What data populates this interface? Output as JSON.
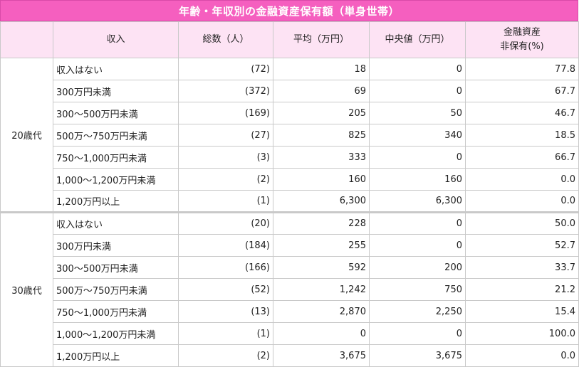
{
  "title": "年齢・年収別の金融資産保有額（単身世帯）",
  "headers": {
    "income": "収入",
    "count": "総数（人）",
    "mean": "平均（万円）",
    "median": "中央値（万円）",
    "nohold_line1": "金融資産",
    "nohold_line2": "非保有(%)"
  },
  "groups": [
    {
      "age": "20歳代",
      "rows": [
        {
          "income": "収入はない",
          "count": "(72)",
          "mean": "18",
          "median": "0",
          "nohold": "77.8"
        },
        {
          "income": "300万円未満",
          "count": "(372)",
          "mean": "69",
          "median": "0",
          "nohold": "67.7"
        },
        {
          "income": "300～500万円未満",
          "count": "(169)",
          "mean": "205",
          "median": "50",
          "nohold": "46.7"
        },
        {
          "income": "500万～750万円未満",
          "count": "(27)",
          "mean": "825",
          "median": "340",
          "nohold": "18.5"
        },
        {
          "income": "750～1,000万円未満",
          "count": "(3)",
          "mean": "333",
          "median": "0",
          "nohold": "66.7"
        },
        {
          "income": "1,000～1,200万円未満",
          "count": "(2)",
          "mean": "160",
          "median": "160",
          "nohold": "0.0"
        },
        {
          "income": "1,200万円以上",
          "count": "(1)",
          "mean": "6,300",
          "median": "6,300",
          "nohold": "0.0"
        }
      ]
    },
    {
      "age": "30歳代",
      "rows": [
        {
          "income": "収入はない",
          "count": "(20)",
          "mean": "228",
          "median": "0",
          "nohold": "50.0"
        },
        {
          "income": "300万円未満",
          "count": "(184)",
          "mean": "255",
          "median": "0",
          "nohold": "52.7"
        },
        {
          "income": "300～500万円未満",
          "count": "(166)",
          "mean": "592",
          "median": "200",
          "nohold": "33.7"
        },
        {
          "income": "500万～750万円未満",
          "count": "(52)",
          "mean": "1,242",
          "median": "750",
          "nohold": "21.2"
        },
        {
          "income": "750～1,000万円未満",
          "count": "(13)",
          "mean": "2,870",
          "median": "2,250",
          "nohold": "15.4"
        },
        {
          "income": "1,000～1,200万円未満",
          "count": "(1)",
          "mean": "0",
          "median": "0",
          "nohold": "100.0"
        },
        {
          "income": "1,200万円以上",
          "count": "(2)",
          "mean": "3,675",
          "median": "3,675",
          "nohold": "0.0"
        }
      ]
    }
  ],
  "colors": {
    "title_bg": "#f55fbf",
    "header_bg": "#fde3f4",
    "border": "#c9c9c9"
  }
}
